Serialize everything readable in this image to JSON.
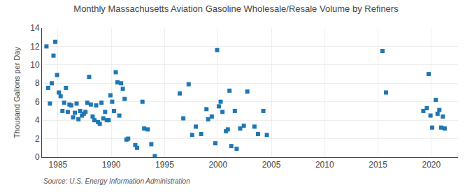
{
  "chart_data": {
    "type": "scatter",
    "title": "Monthly Massachusetts Aviation Gasoline Wholesale/Resale Volume by Refiners",
    "ylabel": "Thousand Gallons per Day",
    "source": "Source: U.S. Energy Information Administration",
    "marker": "square",
    "grid": true,
    "xlim": [
      1983.5,
      2022.5
    ],
    "ylim": [
      0,
      14
    ],
    "xticks": [
      1985,
      1990,
      1995,
      2000,
      2005,
      2010,
      2015,
      2020
    ],
    "yticks": [
      0,
      2,
      4,
      6,
      8,
      10,
      12,
      14
    ],
    "x": [
      1983.92,
      1984.08,
      1984.25,
      1984.42,
      1984.58,
      1984.75,
      1984.92,
      1985.08,
      1985.25,
      1985.42,
      1985.58,
      1985.75,
      1985.92,
      1986.08,
      1986.25,
      1986.42,
      1986.58,
      1986.75,
      1986.92,
      1987.08,
      1987.25,
      1987.42,
      1987.58,
      1987.75,
      1987.92,
      1988.08,
      1988.25,
      1988.42,
      1988.58,
      1988.75,
      1988.92,
      1989.08,
      1989.25,
      1989.42,
      1989.58,
      1989.75,
      1989.92,
      1990.08,
      1990.25,
      1990.42,
      1990.58,
      1990.75,
      1990.92,
      1991.08,
      1991.25,
      1991.42,
      1991.58,
      1992.25,
      1992.42,
      1992.92,
      1993.08,
      1993.42,
      1993.75,
      1994.08,
      1996.42,
      1996.75,
      1997.25,
      1997.58,
      1997.92,
      1998.42,
      1998.92,
      1999.08,
      1999.42,
      1999.75,
      1999.92,
      2000.08,
      2000.25,
      2000.42,
      2000.75,
      2000.92,
      2001.08,
      2001.25,
      2001.58,
      2001.75,
      2002.08,
      2002.42,
      2002.75,
      2003.42,
      2003.75,
      2004.25,
      2004.58,
      2015.42,
      2015.75,
      2019.25,
      2019.58,
      2019.75,
      2019.92,
      2020.08,
      2020.42,
      2020.58,
      2020.75,
      2020.92,
      2021.08,
      2021.25
    ],
    "values": [
      12.0,
      7.5,
      5.8,
      8.0,
      11.0,
      12.5,
      8.9,
      7.0,
      6.6,
      5.0,
      5.9,
      7.5,
      4.9,
      5.7,
      5.6,
      4.3,
      4.8,
      5.8,
      4.1,
      5.0,
      4.5,
      4.7,
      4.9,
      5.9,
      8.7,
      5.7,
      4.4,
      4.0,
      5.6,
      3.8,
      3.6,
      5.9,
      4.2,
      4.9,
      4.0,
      4.0,
      6.7,
      6.0,
      5.0,
      9.2,
      8.1,
      4.5,
      8.0,
      7.4,
      6.3,
      1.9,
      2.0,
      1.3,
      1.0,
      6.0,
      3.1,
      3.0,
      1.4,
      0.1,
      6.9,
      4.2,
      7.9,
      2.4,
      3.3,
      2.5,
      5.2,
      4.1,
      4.4,
      1.5,
      11.6,
      5.5,
      6.0,
      4.9,
      2.8,
      3.0,
      7.2,
      1.2,
      5.0,
      0.9,
      3.1,
      3.4,
      7.1,
      3.3,
      2.5,
      5.0,
      2.4,
      11.5,
      7.0,
      5.0,
      5.3,
      9.0,
      4.5,
      3.2,
      6.2,
      4.7,
      5.1,
      3.2,
      4.4,
      3.1
    ]
  }
}
